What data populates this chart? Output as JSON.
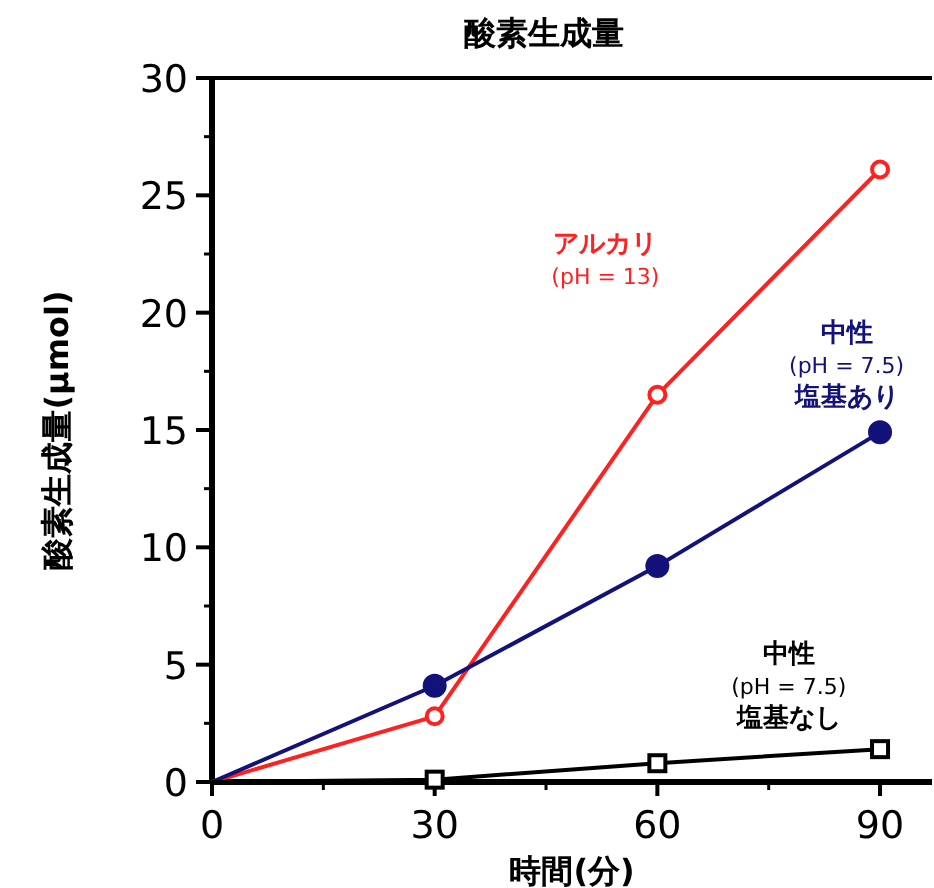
{
  "chart_data": {
    "type": "line",
    "title": "酸素生成量",
    "xlabel": "時間(分)",
    "ylabel": "酸素生成量(μmol)",
    "x": [
      0,
      30,
      60,
      90
    ],
    "xlim": [
      0,
      97
    ],
    "xticks": [
      0,
      30,
      60,
      90
    ],
    "ylim": [
      0,
      30
    ],
    "yticks": [
      0,
      5,
      10,
      15,
      20,
      25,
      30
    ],
    "grid": false,
    "legend": false,
    "line_style": "solid",
    "series": [
      {
        "name": "アルカリ\n(pH = 13)",
        "color": "#ff2020",
        "marker": "circle",
        "values": [
          0,
          2.8,
          16.5,
          26.1
        ]
      },
      {
        "name": "中性\n(pH = 7.5)\n塩基あり",
        "color": "#12127a",
        "marker": "circle",
        "values": [
          0,
          4.1,
          9.2,
          14.9
        ]
      },
      {
        "name": "中性\n(pH = 7.5)\n塩基なし",
        "color": "#000000",
        "marker": "square",
        "values": [
          0,
          0.1,
          0.8,
          1.4
        ]
      }
    ]
  }
}
